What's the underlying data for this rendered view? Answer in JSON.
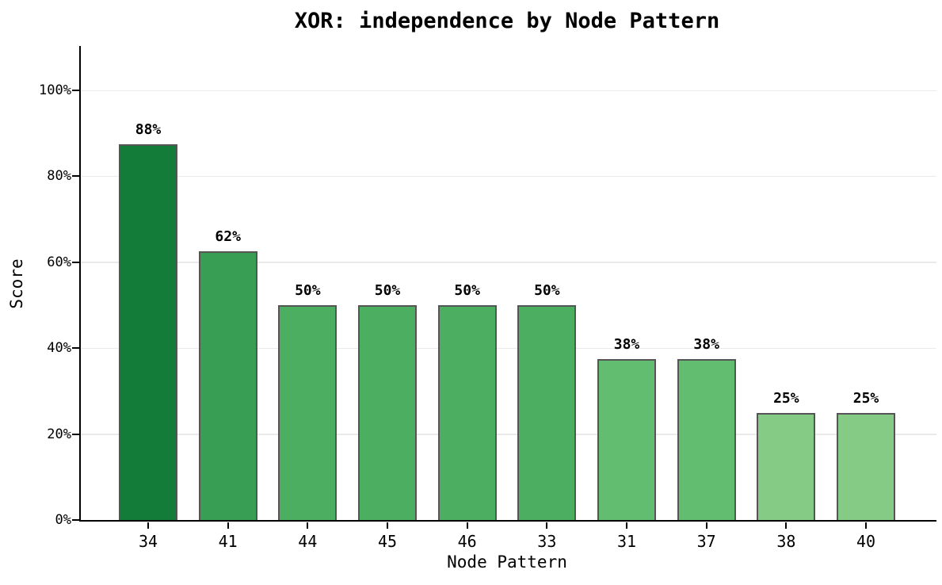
{
  "chart_data": {
    "type": "bar",
    "title": "XOR: independence by Node Pattern",
    "xlabel": "Node Pattern",
    "ylabel": "Score",
    "categories": [
      "34",
      "41",
      "44",
      "45",
      "46",
      "33",
      "31",
      "37",
      "38",
      "40"
    ],
    "values": [
      87.5,
      62.5,
      50,
      50,
      50,
      50,
      37.5,
      37.5,
      25,
      25
    ],
    "value_labels": [
      "88%",
      "62%",
      "50%",
      "50%",
      "50%",
      "50%",
      "38%",
      "38%",
      "25%",
      "25%"
    ],
    "bar_colors": [
      "#127c38",
      "#379e53",
      "#4bae60",
      "#4bae60",
      "#4bae60",
      "#4bae60",
      "#63bd70",
      "#63bd70",
      "#85cb85",
      "#85cb85"
    ],
    "bar_edge_color": "#555555",
    "ylim": [
      0,
      110
    ],
    "yticks": {
      "values": [
        0,
        20,
        40,
        60,
        80,
        100
      ],
      "labels": [
        "0%",
        "20%",
        "40%",
        "60%",
        "80%",
        "100%"
      ]
    },
    "grid": "horizontal",
    "gridline_color": "#eaeaea",
    "axis_color": "#000000",
    "text_color": "#000000",
    "background": "#ffffff",
    "legend": "none"
  }
}
